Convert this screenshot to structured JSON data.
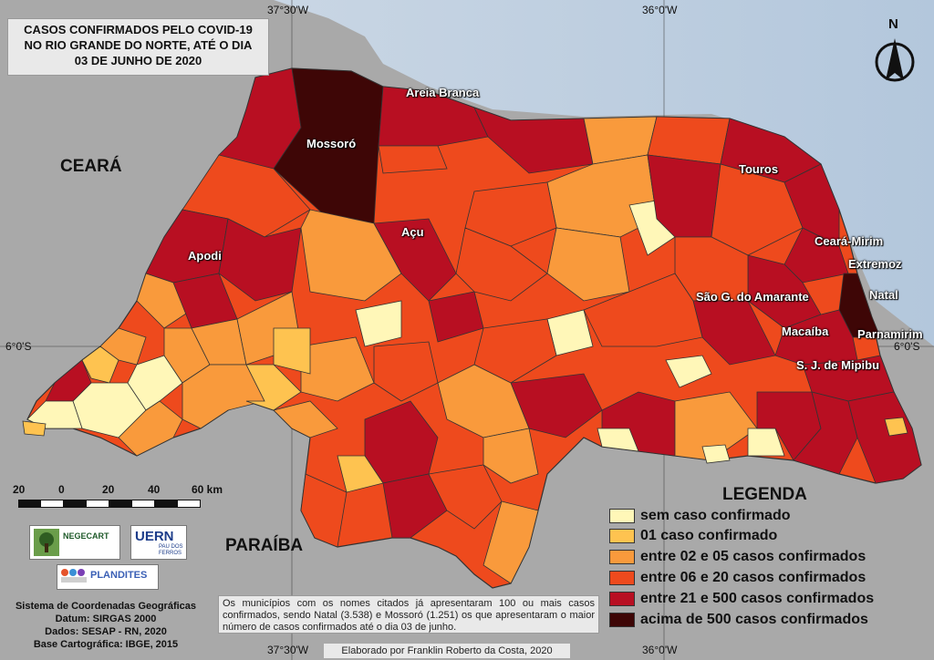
{
  "title": {
    "line1": "CASOS CONFIRMADOS PELO COVID-19",
    "line2": "NO RIO GRANDE DO NORTE, ATÉ O DIA",
    "line3": "03 DE JUNHO DE 2020"
  },
  "coords": {
    "top_left": "37°30'W",
    "top_right": "36°0'W",
    "bottom_left": "37°30'W",
    "bottom_right": "36°0'W",
    "left_lat": "6°0'S",
    "right_lat": "6°0'S"
  },
  "regions": {
    "ceara": "CEARÁ",
    "paraiba": "PARAÍBA"
  },
  "north": "N",
  "cities": {
    "mossoro": "Mossoró",
    "areia_branca": "Areia Branca",
    "acu": "Açu",
    "apodi": "Apodi",
    "touros": "Touros",
    "ceara_mirim": "Ceará-Mirim",
    "extremoz": "Extremoz",
    "natal": "Natal",
    "sao_goncalo": "São G. do Amarante",
    "macaiba": "Macaíba",
    "parnamirim": "Parnamirim",
    "sjm": "S. J. de Mipibu"
  },
  "scale": {
    "t20a": "20",
    "t0": "0",
    "t20": "20",
    "t40": "40",
    "t60": "60 km"
  },
  "logos": {
    "negecart": "NEGECART",
    "uern": "UERN",
    "uern_sub": "PAU DOS FERROS",
    "plandites": "PLANDITES"
  },
  "info": {
    "l1": "Sistema de Coordenadas Geográficas",
    "l2": "Datum: SIRGAS 2000",
    "l3": "Dados: SESAP - RN, 2020",
    "l4": "Base Cartográfica: IBGE, 2015"
  },
  "note": "Os municípios com os nomes citados já apresentaram 100 ou mais casos confirmados, sendo Natal (3.538) e Mossoró (1.251) os que apresentaram o maior número de casos confirmados até o dia 03 de junho.",
  "credit": "Elaborado por Franklin Roberto da Costa, 2020",
  "legend": {
    "title": "LEGENDA",
    "items": [
      {
        "label": "sem caso confirmado",
        "color": "#fff7b8"
      },
      {
        "label": "01 caso confirmado",
        "color": "#fec350"
      },
      {
        "label": "entre 02 e 05 casos confirmados",
        "color": "#f99a3c"
      },
      {
        "label": "entre 06 e 20 casos confirmados",
        "color": "#ee4a1d"
      },
      {
        "label": "entre 21 e 500 casos confirmados",
        "color": "#b80f22"
      },
      {
        "label": "acima de 500 casos confirmados",
        "color": "#3e0606"
      }
    ]
  },
  "colors": {
    "ocean": "#cfdbe8",
    "land": "#ababab",
    "border": "#444444"
  }
}
